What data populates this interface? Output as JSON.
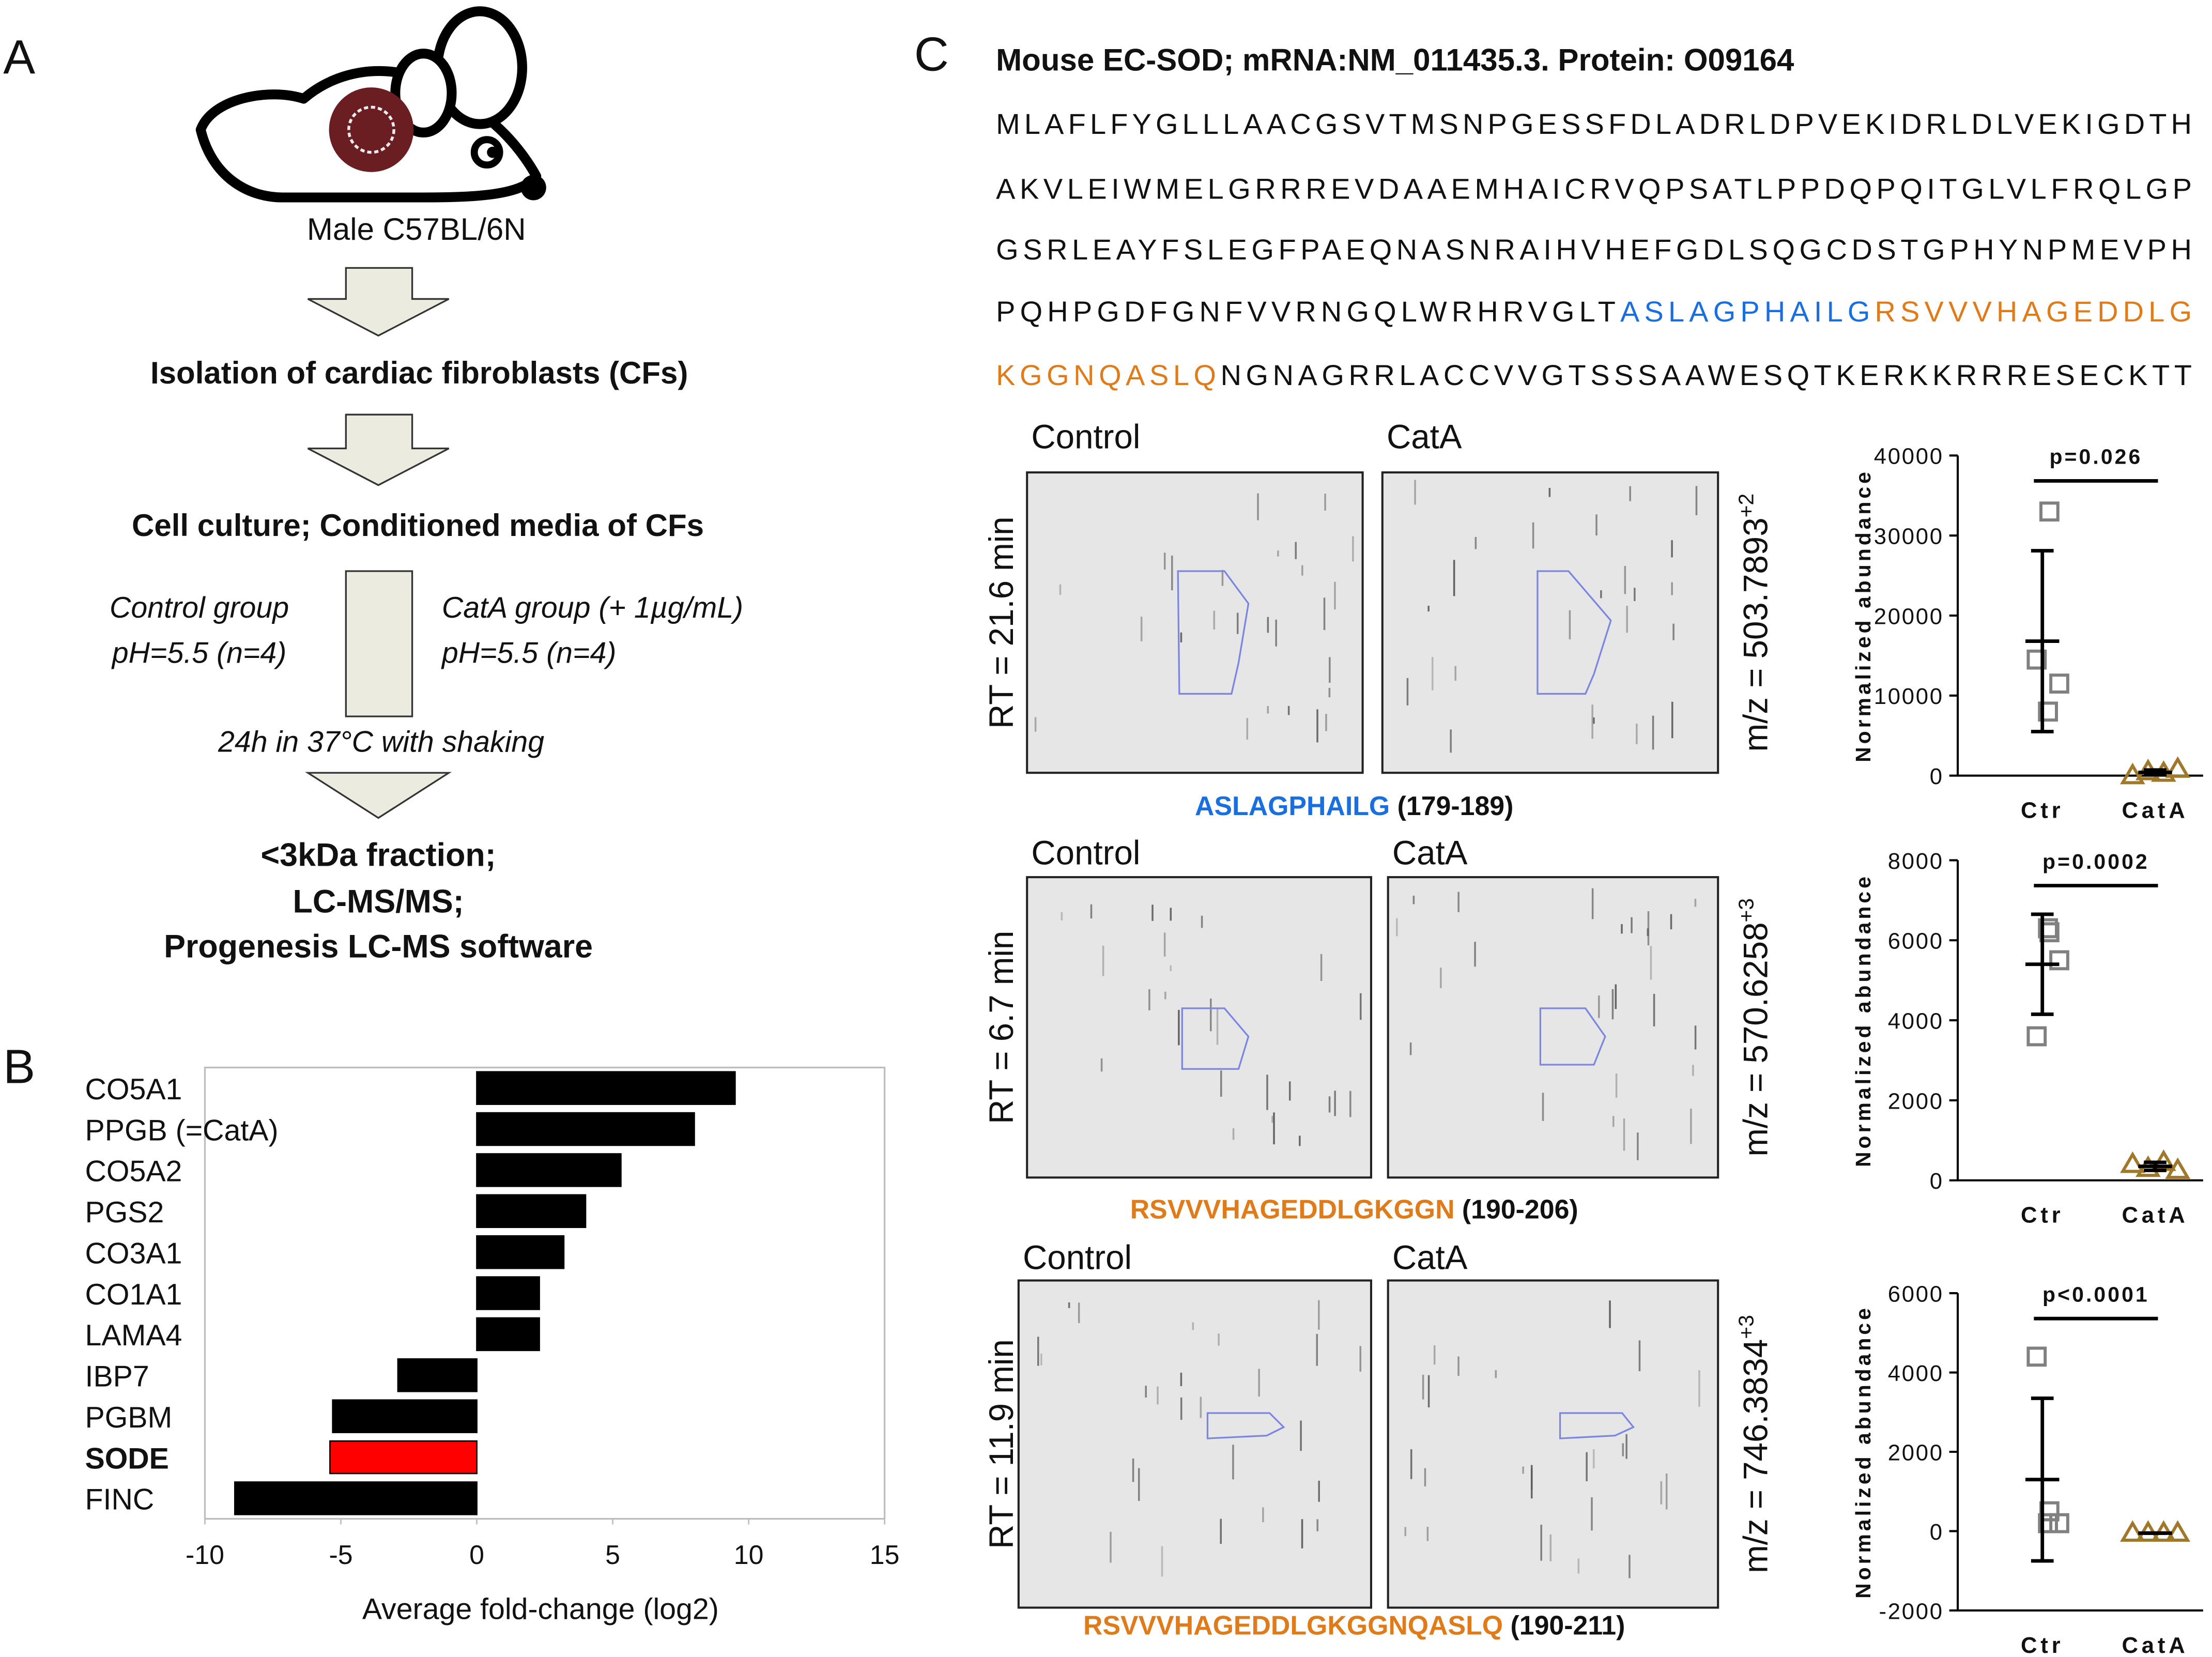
{
  "panel_labels": [
    "A",
    "B",
    "C"
  ],
  "workflow": {
    "mouse": "Male C57BL/6N",
    "steps": [
      "Isolation of cardiac fibroblasts (CFs)",
      "Cell culture; Conditioned media of CFs"
    ],
    "control": [
      "Control group",
      "pH=5.5 (n=4)"
    ],
    "cata": [
      "CatA group (+ 1µg/mL)",
      "pH=5.5 (n=4)"
    ],
    "incubation": "24h in 37°C with shaking",
    "output": [
      "<3kDa fraction;",
      "LC-MS/MS;",
      "Progenesis LC-MS software"
    ]
  },
  "sequence": {
    "title": "Mouse EC-SOD; mRNA:NM_011435.3. Protein: O09164",
    "lines": [
      [
        {
          "text": "MLAFLFYGLLLAACGSVTMSNPGESSFDLADRLDPVEKIDRLDLVEKIGDTH",
          "color": "#111111"
        }
      ],
      [
        {
          "text": "AKVLEIWMELGRRREVDAAEMHAICRVQPSATLPPDQPQITGLVLFRQLGP",
          "color": "#111111"
        }
      ],
      [
        {
          "text": "GSRLEAYFSLEGFPAEQNASNRAIHVHEFGDLSQGCDSTGPHYNPMEVPH",
          "color": "#111111"
        }
      ],
      [
        {
          "text": "PQHPGDFGNFVVRNGQLWRHRVGLT",
          "color": "#111111"
        },
        {
          "text": "ASLAGPHAILG",
          "color": "#1a6fe0"
        },
        {
          "text": "RSVVVHAGEDDLG",
          "color": "#e07b1a"
        }
      ],
      [
        {
          "text": "KGGNQASLQ",
          "color": "#e07b1a"
        },
        {
          "text": "NGNAGRRLACCVVGTSSSAAWESQTKERKKRRRESECKTT",
          "color": "#111111"
        }
      ]
    ]
  },
  "ms_panels": [
    {
      "groups": [
        "Control",
        "CatA"
      ],
      "rt": "RT = 21.6 min",
      "mz": "m/z = 503.7893",
      "charge": "+2",
      "peptide": "ASLAGPHAILG",
      "peptide_color": "#1a6fe0",
      "range": "(179-189)"
    },
    {
      "groups": [
        "Control",
        "CatA"
      ],
      "rt": "RT = 6.7 min",
      "mz": "m/z = 570.6258",
      "charge": "+3",
      "peptide": "RSVVVHAGEDDLGKGGN",
      "peptide_color": "#e07b1a",
      "range": "(190-206)"
    },
    {
      "groups": [
        "Control",
        "CatA"
      ],
      "rt": "RT = 11.9 min",
      "mz": "m/z = 746.3834",
      "charge": "+3",
      "peptide": "RSVVVHAGEDDLGKGGNQASLQ",
      "peptide_color": "#e07b1a",
      "range": "(190-211)"
    }
  ],
  "chart_data": [
    {
      "type": "bar",
      "orientation": "horizontal",
      "categories": [
        "CO5A1",
        "PPGB (=CatA)",
        "CO5A2",
        "PGS2",
        "CO3A1",
        "CO1A1",
        "LAMA4",
        "IBP7",
        "PGBM",
        "SODE",
        "FINC"
      ],
      "values": [
        9.5,
        8,
        5.3,
        4,
        3.2,
        2.3,
        2.3,
        -2.9,
        -5.3,
        -5.4,
        -8.9
      ],
      "colors": [
        "#000000",
        "#000000",
        "#000000",
        "#000000",
        "#000000",
        "#000000",
        "#000000",
        "#000000",
        "#000000",
        "#ff0000",
        "#000000"
      ],
      "label_colors": [
        "#111111",
        "#111111",
        "#111111",
        "#111111",
        "#111111",
        "#111111",
        "#111111",
        "#111111",
        "#111111",
        "#ff0000",
        "#111111"
      ],
      "xlim": [
        -10,
        15
      ],
      "xticks": [
        -10,
        -5,
        0,
        5,
        10,
        15
      ],
      "xlabel": "Average fold-change (log2)"
    },
    {
      "type": "scatter",
      "ylabel": "Normalized abundance",
      "annotation": "p=0.026",
      "ylim": [
        0,
        40000
      ],
      "yticks": [
        0,
        10000,
        20000,
        30000,
        40000
      ],
      "series": [
        {
          "name": "Ctr",
          "color": "#808080",
          "marker": "square",
          "values": [
            33000,
            14500,
            11500,
            8000
          ],
          "mean": 16800,
          "sd": 11300
        },
        {
          "name": "CatA",
          "color": "#a0782a",
          "marker": "triangle",
          "values": [
            0,
            500,
            300,
            800
          ],
          "mean": 400,
          "sd": 300
        }
      ]
    },
    {
      "type": "scatter",
      "ylabel": "Normalized abundance",
      "annotation": "p=0.0002",
      "ylim": [
        0,
        8000
      ],
      "yticks": [
        0,
        2000,
        4000,
        6000,
        8000
      ],
      "series": [
        {
          "name": "Ctr",
          "color": "#808080",
          "marker": "square",
          "values": [
            6200,
            3600,
            5500,
            6300
          ],
          "mean": 5400,
          "sd": 1250
        },
        {
          "name": "CatA",
          "color": "#a0782a",
          "marker": "triangle",
          "values": [
            400,
            300,
            450,
            250
          ],
          "mean": 350,
          "sd": 100
        }
      ]
    },
    {
      "type": "scatter",
      "ylabel": "Normalized abundance",
      "annotation": "p<0.0001",
      "ylim": [
        -2000,
        6000
      ],
      "yticks": [
        -2000,
        0,
        2000,
        4000,
        6000
      ],
      "series": [
        {
          "name": "Ctr",
          "color": "#808080",
          "marker": "square",
          "values": [
            500,
            4400,
            200,
            200
          ],
          "mean": 1300,
          "sd": 2050
        },
        {
          "name": "CatA",
          "color": "#a0782a",
          "marker": "triangle",
          "values": [
            -50,
            -50,
            -50,
            -50
          ],
          "mean": -50,
          "sd": 0
        }
      ]
    }
  ]
}
